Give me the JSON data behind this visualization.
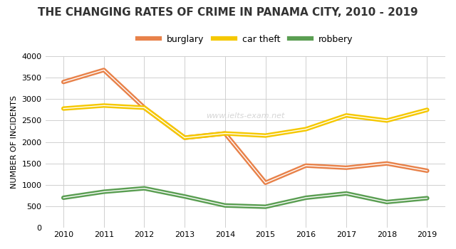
{
  "title": "THE CHANGING RATES OF CRIME IN PANAMA CITY, 2010 - 2019",
  "ylabel": "NUMBER OF INCIDENTS",
  "watermark": "www.ielts-exam.net",
  "years": [
    2010,
    2011,
    2012,
    2013,
    2014,
    2015,
    2016,
    2017,
    2018,
    2019
  ],
  "burglary": [
    3400,
    3680,
    2800,
    2100,
    2200,
    1050,
    1450,
    1400,
    1500,
    1330
  ],
  "car_theft": [
    2780,
    2850,
    2800,
    2100,
    2200,
    2150,
    2300,
    2620,
    2500,
    2750
  ],
  "robbery": [
    700,
    840,
    920,
    730,
    520,
    490,
    700,
    800,
    600,
    690
  ],
  "burglary_color": "#E8824A",
  "car_theft_color": "#F5C800",
  "robbery_color": "#5A9E52",
  "background_color": "#ffffff",
  "ylim": [
    0,
    4000
  ],
  "yticks": [
    0,
    500,
    1000,
    1500,
    2000,
    2500,
    3000,
    3500,
    4000
  ],
  "title_fontsize": 11,
  "axis_label_fontsize": 8,
  "legend_fontsize": 9,
  "line_width": 2.5,
  "grid_color": "#d0d0d0"
}
